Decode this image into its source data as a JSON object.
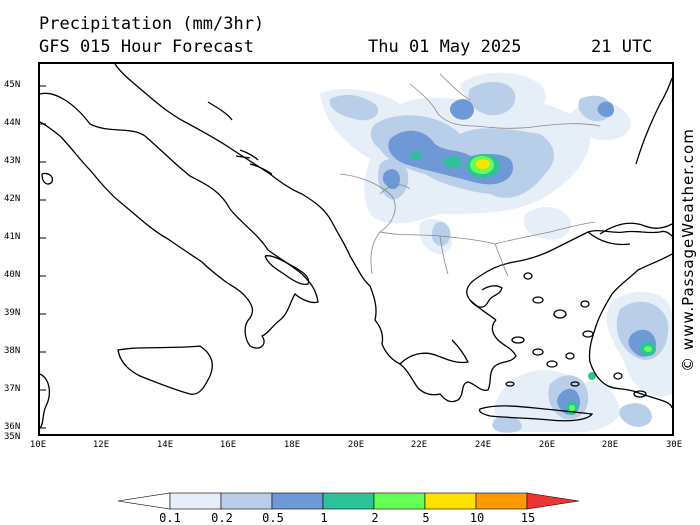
{
  "title": "Precipitation (mm/3hr)",
  "subtitle": "GFS 015 Hour Forecast",
  "valid_date": "Thu 01 May 2025",
  "valid_time": "21 UTC",
  "watermark": "© www.PassageWeather.com",
  "lat_labels": [
    "45N",
    "44N",
    "43N",
    "42N",
    "41N",
    "40N",
    "39N",
    "38N",
    "37N",
    "36N",
    "35N"
  ],
  "lon_labels": [
    "10E",
    "12E",
    "14E",
    "16E",
    "18E",
    "20E",
    "22E",
    "24E",
    "26E",
    "28E",
    "30E"
  ],
  "legend": {
    "labels": [
      "0.1",
      "0.2",
      "0.5",
      "1",
      "2",
      "5",
      "10",
      "15"
    ],
    "colors": [
      "#ffffff",
      "#e6eef8",
      "#b9cfe9",
      "#6f98d6",
      "#2ec29a",
      "#66ff55",
      "#ffe100",
      "#ff9900",
      "#ee3333"
    ]
  },
  "map_data": {
    "extent": {
      "lon": [
        10,
        30
      ],
      "lat": [
        35,
        45.5
      ]
    },
    "precip_centers": [
      {
        "lon": 23.9,
        "lat": 42.9,
        "peak_mm": 10
      },
      {
        "lon": 22.0,
        "lat": 42.9,
        "peak_mm": 2
      },
      {
        "lon": 29.1,
        "lat": 37.9,
        "peak_mm": 2
      },
      {
        "lon": 26.8,
        "lat": 35.7,
        "peak_mm": 2
      }
    ]
  }
}
